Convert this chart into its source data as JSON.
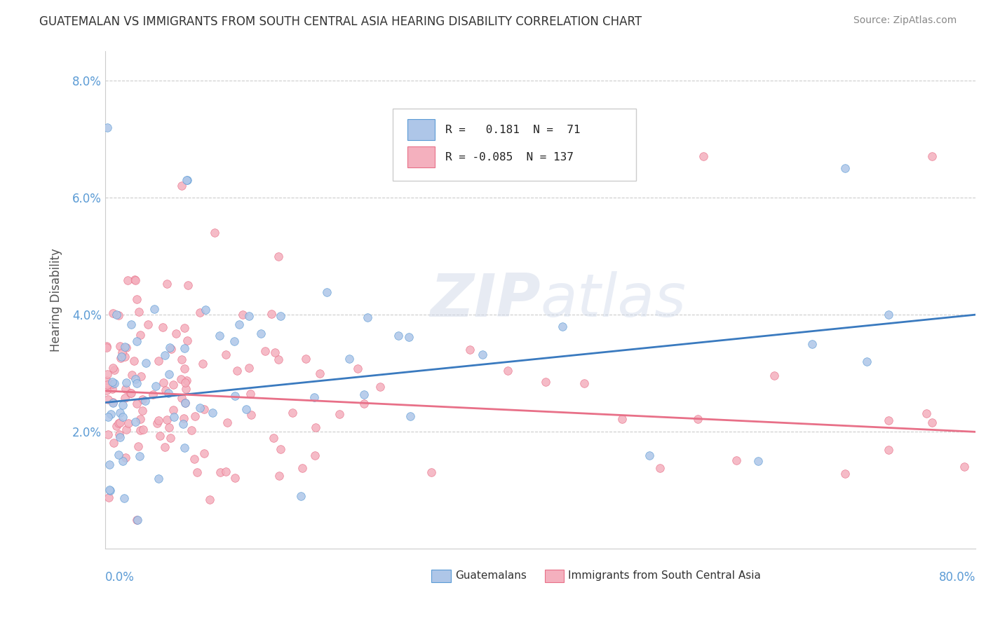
{
  "title": "GUATEMALAN VS IMMIGRANTS FROM SOUTH CENTRAL ASIA HEARING DISABILITY CORRELATION CHART",
  "source": "Source: ZipAtlas.com",
  "ylabel": "Hearing Disability",
  "watermark": "ZIPatlas",
  "xlim": [
    0.0,
    0.8
  ],
  "ylim": [
    0.0,
    0.085
  ],
  "yticks": [
    0.02,
    0.04,
    0.06,
    0.08
  ],
  "ytick_labels": [
    "2.0%",
    "4.0%",
    "6.0%",
    "8.0%"
  ],
  "blue_line": [
    0.0,
    0.025,
    0.8,
    0.04
  ],
  "pink_line": [
    0.0,
    0.027,
    0.8,
    0.02
  ],
  "blue_scatter_color": "#aec6e8",
  "blue_edge_color": "#5b9bd5",
  "pink_scatter_color": "#f4b0be",
  "pink_edge_color": "#e87088",
  "blue_line_color": "#3a7abf",
  "pink_line_color": "#e87088",
  "legend_R1": "0.181",
  "legend_N1": "71",
  "legend_R2": "-0.085",
  "legend_N2": "137",
  "title_color": "#333333",
  "source_color": "#888888",
  "ytick_color": "#5b9bd5",
  "xlabel_color": "#5b9bd5"
}
